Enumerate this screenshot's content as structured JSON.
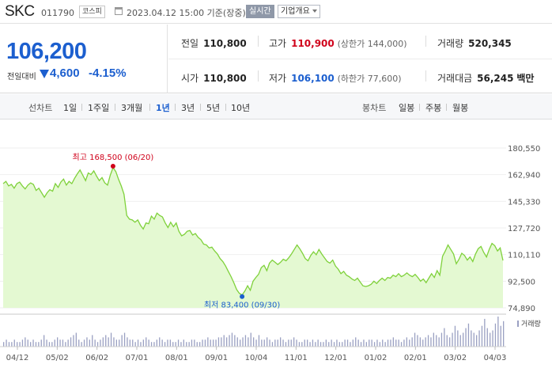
{
  "header": {
    "name": "SKC",
    "code": "011790",
    "market": "코스피",
    "datetime": "2023.04.12 15:00 기준(장중)",
    "realtime": "실시간",
    "overview": "기업개요"
  },
  "quote": {
    "price": "106,200",
    "change_label": "전일대비",
    "change": "4,600",
    "change_pct": "-4.15%",
    "prev_label": "전일",
    "prev": "110,800",
    "high_label": "고가",
    "high": "110,900",
    "upper_limit": "(상한가 144,000)",
    "volume_label": "거래량",
    "volume": "520,345",
    "open_label": "시가",
    "open": "110,800",
    "low_label": "저가",
    "low": "106,100",
    "lower_limit": "(하한가 77,600)",
    "amount_label": "거래대금",
    "amount": "56,245",
    "amount_unit": "백만"
  },
  "tabs": {
    "line_label": "선차트",
    "line_tabs": [
      "1일",
      "1주일",
      "3개월",
      "1년",
      "3년",
      "5년",
      "10년"
    ],
    "active": "1년",
    "candle_label": "봉차트",
    "candle_tabs": [
      "일봉",
      "주봉",
      "월봉"
    ]
  },
  "colors": {
    "line": "#7fd13b",
    "fill": "#e4f9d2",
    "high_marker": "#d0021b",
    "low_marker": "#1c5fcf",
    "volume": "#9aa0c2"
  },
  "chart_data": {
    "type": "area",
    "ylim": [
      74890,
      180550
    ],
    "yticks": [
      "180,550",
      "162,940",
      "145,330",
      "127,720",
      "110,110",
      "92,500",
      "74,890"
    ],
    "xticks": [
      "04/12",
      "05/02",
      "06/02",
      "07/01",
      "08/01",
      "09/01",
      "10/04",
      "11/01",
      "12/01",
      "01/02",
      "02/01",
      "03/02",
      "04/03"
    ],
    "high_annotation": "최고 168,500 (06/20)",
    "low_annotation": "최저 83,400 (09/30)",
    "volume_label": "거래량",
    "series": [
      {
        "values": [
          157000,
          158500,
          155500,
          156500,
          154000,
          157000,
          158000,
          155500,
          153500,
          156000,
          157500,
          156500,
          152500,
          154000,
          151000,
          148000,
          151000,
          153000,
          152000,
          157000,
          154500,
          158000,
          160000,
          156000,
          158500,
          157000,
          160500,
          163500,
          166000,
          162500,
          159000,
          164000,
          163000,
          165500,
          162000,
          159000,
          161000,
          157500,
          156000,
          162500,
          167500,
          165000,
          160000,
          155500,
          150000,
          136000,
          133500,
          133000,
          131500,
          133000,
          129500,
          127000,
          131000,
          130500,
          135500,
          133500,
          137500,
          136000,
          135000,
          131000,
          128000,
          131500,
          128500,
          131000,
          125500,
          122500,
          123500,
          125500,
          126000,
          123000,
          124000,
          121500,
          120000,
          117000,
          116500,
          114500,
          115000,
          112500,
          110500,
          107500,
          105500,
          102500,
          99000,
          95500,
          91500,
          87000,
          84500,
          83400,
          86000,
          89500,
          86500,
          92500,
          95000,
          97000,
          101500,
          103000,
          99500,
          104500,
          106500,
          105000,
          103500,
          105000,
          107000,
          106000,
          108000,
          110500,
          113500,
          116500,
          114000,
          111000,
          107500,
          106000,
          109500,
          112000,
          110000,
          113500,
          110500,
          108000,
          105500,
          104500,
          106500,
          102500,
          100500,
          97500,
          99000,
          96500,
          95500,
          94000,
          93000,
          94500,
          92000,
          89500,
          89000,
          89500,
          90500,
          92500,
          91000,
          93000,
          94500,
          93000,
          95000,
          94500,
          96500,
          95500,
          97500,
          95500,
          96500,
          98000,
          96500,
          95500,
          97000,
          95000,
          92500,
          94000,
          91500,
          94500,
          97500,
          95000,
          99500,
          96500,
          109000,
          112500,
          116500,
          113500,
          110500,
          104000,
          107000,
          111000,
          109500,
          106500,
          108500,
          105500,
          110500,
          114000,
          115500,
          111500,
          108500,
          113500,
          117500,
          116000,
          112500,
          114500,
          106200
        ]
      }
    ],
    "volume": [
      2,
      3,
      2,
      2,
      3,
      2,
      2,
      3,
      4,
      3,
      2,
      3,
      2,
      2,
      3,
      5,
      3,
      2,
      2,
      3,
      4,
      3,
      3,
      2,
      3,
      4,
      5,
      6,
      3,
      2,
      3,
      4,
      3,
      5,
      3,
      2,
      3,
      4,
      5,
      4,
      6,
      4,
      3,
      3,
      5,
      6,
      4,
      3,
      3,
      2,
      3,
      2,
      3,
      4,
      3,
      2,
      2,
      3,
      4,
      3,
      2,
      3,
      3,
      2,
      2,
      3,
      2,
      3,
      2,
      2,
      3,
      3,
      2,
      2,
      3,
      3,
      4,
      3,
      3,
      3,
      4,
      4,
      5,
      4,
      5,
      6,
      5,
      4,
      3,
      4,
      5,
      4,
      6,
      4,
      3,
      5,
      3,
      3,
      4,
      3,
      2,
      3,
      3,
      4,
      3,
      2,
      3,
      3,
      4,
      3,
      2,
      2,
      3,
      3,
      2,
      3,
      2,
      3,
      2,
      2,
      3,
      2,
      3,
      2,
      3,
      2,
      2,
      3,
      3,
      2,
      3,
      4,
      3,
      2,
      3,
      2,
      3,
      3,
      2,
      3,
      2,
      3,
      2,
      3,
      3,
      4,
      3,
      3,
      2,
      3,
      4,
      3,
      4,
      6,
      5,
      4,
      3,
      4,
      5,
      4,
      6,
      5,
      4,
      6,
      8,
      5,
      4,
      6,
      9,
      7,
      5,
      6,
      8,
      10,
      7,
      6,
      5,
      7,
      9,
      12,
      8,
      6,
      7,
      10,
      13,
      9,
      11
    ]
  }
}
